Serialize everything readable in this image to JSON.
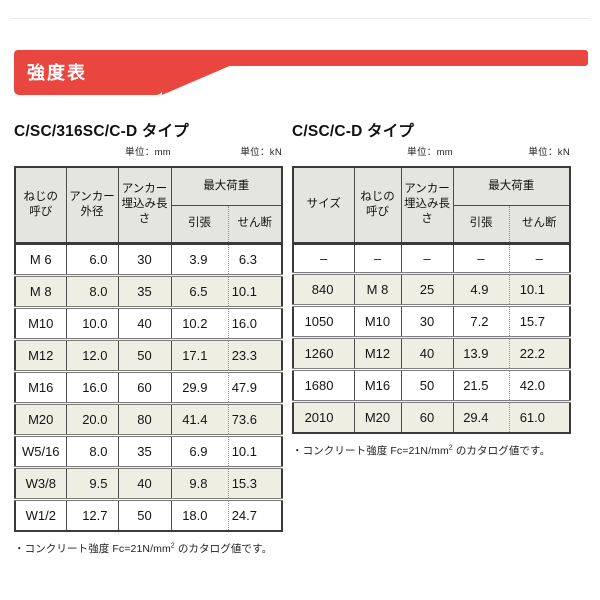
{
  "banner": {
    "label": "強度表",
    "color": "#e8463f"
  },
  "tables": [
    {
      "title": "C/SC/316SC/C-D タイプ",
      "unit_mm": "単位：mm",
      "unit_kn": "単位：kN",
      "col_headers": [
        "ねじの\n呼び",
        "アンカー\n外径",
        "アンカー\n埋込み長さ"
      ],
      "max_load_header": "最大荷重",
      "sub_headers": [
        "引張",
        "せん断"
      ],
      "rows": [
        [
          "M 6",
          "6.0",
          "30",
          "3.9",
          "6.3"
        ],
        [
          "M 8",
          "8.0",
          "35",
          "6.5",
          "10.1"
        ],
        [
          "M10",
          "10.0",
          "40",
          "10.2",
          "16.0"
        ],
        [
          "M12",
          "12.0",
          "50",
          "17.1",
          "23.3"
        ],
        [
          "M16",
          "16.0",
          "60",
          "29.9",
          "47.9"
        ],
        [
          "M20",
          "20.0",
          "80",
          "41.4",
          "73.6"
        ],
        [
          "W5/16",
          "8.0",
          "35",
          "6.9",
          "10.1"
        ],
        [
          "W3/8",
          "9.5",
          "40",
          "9.8",
          "15.3"
        ],
        [
          "W1/2",
          "12.7",
          "50",
          "18.0",
          "24.7"
        ]
      ],
      "footnote": {
        "text": "・コンクリート強度 Fc=21N/mm",
        "sup": "2",
        "text2": " のカタログ値です。"
      }
    },
    {
      "title": "C/SC/C-D タイプ",
      "unit_mm": "単位：mm",
      "unit_kn": "単位：kN",
      "col_headers": [
        "サイズ",
        "ねじの\n呼び",
        "アンカー\n埋込み長さ"
      ],
      "max_load_header": "最大荷重",
      "sub_headers": [
        "引張",
        "せん断"
      ],
      "rows": [
        [
          "–",
          "–",
          "–",
          "–",
          "–"
        ],
        [
          "840",
          "M 8",
          "25",
          "4.9",
          "10.1"
        ],
        [
          "1050",
          "M10",
          "30",
          "7.2",
          "15.7"
        ],
        [
          "1260",
          "M12",
          "40",
          "13.9",
          "22.2"
        ],
        [
          "1680",
          "M16",
          "50",
          "21.5",
          "42.0"
        ],
        [
          "2010",
          "M20",
          "60",
          "29.4",
          "61.0"
        ]
      ],
      "footnote": {
        "text": "・コンクリート強度 Fc=21N/mm",
        "sup": "2",
        "text2": " のカタログ値です。"
      }
    }
  ]
}
